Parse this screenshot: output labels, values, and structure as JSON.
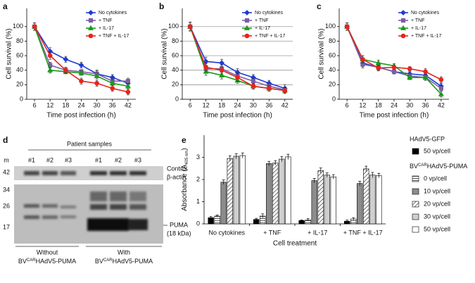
{
  "chart_data": [
    {
      "type": "line",
      "label": "a",
      "x_label": "Time post infection (h)",
      "y_label": "Cell survival (%)",
      "x": [
        6,
        12,
        18,
        24,
        30,
        36,
        42
      ],
      "xlim": [
        3,
        45
      ],
      "xticks": [
        6,
        12,
        18,
        24,
        30,
        36,
        42
      ],
      "ylim": [
        0,
        125
      ],
      "yticks": [
        0,
        20,
        40,
        60,
        80,
        100
      ],
      "grid": false,
      "legend": "upper right",
      "series": [
        {
          "name": "No cytokines",
          "color": "#1f3bd6",
          "marker": "diamond",
          "values": [
            100,
            66,
            55,
            47,
            35,
            30,
            22
          ],
          "errors": [
            5,
            5,
            4,
            4,
            5,
            4,
            5
          ]
        },
        {
          "name": "+ TNF",
          "color": "#7b5ea7",
          "marker": "square",
          "values": [
            100,
            47,
            40,
            38,
            35,
            25,
            25
          ],
          "errors": [
            5,
            4,
            3,
            3,
            4,
            4,
            4
          ]
        },
        {
          "name": "+ IL-17",
          "color": "#1a9a1a",
          "marker": "triangle",
          "values": [
            100,
            40,
            38,
            36,
            32,
            22,
            18
          ],
          "errors": [
            5,
            4,
            3,
            3,
            4,
            5,
            4
          ]
        },
        {
          "name": "+ TNF + IL-17",
          "color": "#e8231c",
          "marker": "circle",
          "values": [
            100,
            60,
            40,
            25,
            22,
            15,
            10
          ],
          "errors": [
            5,
            5,
            4,
            4,
            4,
            4,
            4
          ]
        }
      ]
    },
    {
      "type": "line",
      "label": "b",
      "x_label": "Time post infection (h)",
      "y_label": "Cell survival (%)",
      "x": [
        6,
        12,
        18,
        24,
        30,
        36,
        42
      ],
      "xlim": [
        3,
        45
      ],
      "xticks": [
        6,
        12,
        18,
        24,
        30,
        36,
        42
      ],
      "ylim": [
        0,
        125
      ],
      "yticks": [
        0,
        20,
        40,
        60,
        80,
        100
      ],
      "grid": true,
      "legend": "upper right",
      "series": [
        {
          "name": "No cytokines",
          "color": "#1f3bd6",
          "marker": "diamond",
          "values": [
            100,
            52,
            50,
            37,
            30,
            22,
            15
          ],
          "errors": [
            6,
            6,
            5,
            5,
            4,
            4,
            5
          ]
        },
        {
          "name": "+ TNF",
          "color": "#7b5ea7",
          "marker": "square",
          "values": [
            100,
            42,
            42,
            32,
            25,
            18,
            13
          ],
          "errors": [
            6,
            5,
            5,
            4,
            4,
            4,
            4
          ]
        },
        {
          "name": "+ IL-17",
          "color": "#1a9a1a",
          "marker": "triangle",
          "values": [
            100,
            38,
            33,
            26,
            18,
            15,
            12
          ],
          "errors": [
            6,
            5,
            5,
            4,
            4,
            4,
            4
          ]
        },
        {
          "name": "+ TNF + IL-17",
          "color": "#e8231c",
          "marker": "circle",
          "values": [
            100,
            44,
            40,
            30,
            18,
            15,
            12
          ],
          "errors": [
            6,
            5,
            5,
            5,
            4,
            4,
            4
          ]
        }
      ]
    },
    {
      "type": "line",
      "label": "c",
      "x_label": "Time post infection (h)",
      "y_label": "Cell survival (%)",
      "x": [
        6,
        12,
        18,
        24,
        30,
        36,
        42
      ],
      "xlim": [
        3,
        45
      ],
      "xticks": [
        6,
        12,
        18,
        24,
        30,
        36,
        42
      ],
      "ylim": [
        0,
        125
      ],
      "yticks": [
        0,
        20,
        40,
        60,
        80,
        100
      ],
      "grid": false,
      "legend": "upper right",
      "series": [
        {
          "name": "No cytokines",
          "color": "#1f3bd6",
          "marker": "diamond",
          "values": [
            100,
            50,
            44,
            38,
            35,
            33,
            18
          ],
          "errors": [
            5,
            5,
            4,
            3,
            3,
            4,
            4
          ]
        },
        {
          "name": "+ TNF",
          "color": "#7b5ea7",
          "marker": "square",
          "values": [
            100,
            48,
            44,
            38,
            32,
            30,
            15
          ],
          "errors": [
            5,
            5,
            4,
            3,
            3,
            4,
            4
          ]
        },
        {
          "name": "+ IL-17",
          "color": "#1a9a1a",
          "marker": "triangle",
          "values": [
            100,
            55,
            50,
            46,
            30,
            30,
            7
          ],
          "errors": [
            5,
            5,
            4,
            3,
            3,
            4,
            4
          ]
        },
        {
          "name": "+ TNF + IL-17",
          "color": "#e8231c",
          "marker": "circle",
          "values": [
            100,
            55,
            43,
            44,
            42,
            38,
            27
          ],
          "errors": [
            5,
            5,
            4,
            3,
            3,
            4,
            4
          ]
        }
      ]
    },
    {
      "type": "bar",
      "label": "e",
      "x_label": "Cell treatment",
      "y_label": {
        "main": "Absorbance (A",
        "sub": "405 nm",
        "end": ")"
      },
      "categories": [
        "No cytokines",
        "+ TNF",
        "+ IL-17",
        "+ TNF + IL-17"
      ],
      "ylim": [
        0,
        4
      ],
      "yticks": [
        0,
        1,
        2,
        3
      ],
      "legend_titles": [
        "HAdV5-GFP",
        {
          "base": "BV",
          "sup": "CAR",
          "rest": "HAdV5-PUMA"
        }
      ],
      "series": [
        {
          "name": "50 vp/cell",
          "group": 0,
          "color": "#000000",
          "values": [
            0.28,
            0.2,
            0.15,
            0.12
          ],
          "errors": [
            0.05,
            0.05,
            0.03,
            0.05
          ]
        },
        {
          "name": "0 vp/cell",
          "group": 1,
          "color": "#ffffff",
          "hatch": "horizontal",
          "values": [
            0.35,
            0.35,
            0.18,
            0.22
          ],
          "errors": [
            0.05,
            0.1,
            0.06,
            0.06
          ]
        },
        {
          "name": "10 vp/cell",
          "group": 1,
          "color": "#8c8c8c",
          "values": [
            1.88,
            2.72,
            1.95,
            1.82
          ],
          "errors": [
            0.1,
            0.1,
            0.1,
            0.1
          ]
        },
        {
          "name": "20 vp/cell",
          "group": 1,
          "color": "#ffffff",
          "hatch": "diagonal",
          "values": [
            2.95,
            2.75,
            2.4,
            2.48
          ],
          "errors": [
            0.12,
            0.1,
            0.12,
            0.12
          ]
        },
        {
          "name": "30 vp/cell",
          "group": 1,
          "color": "#cfcfcf",
          "values": [
            3.05,
            2.92,
            2.2,
            2.2
          ],
          "errors": [
            0.12,
            0.12,
            0.1,
            0.12
          ]
        },
        {
          "name": "50 vp/cell",
          "group": 1,
          "color": "#ffffff",
          "values": [
            3.08,
            3.02,
            2.12,
            2.18
          ],
          "errors": [
            0.12,
            0.12,
            0.1,
            0.1
          ]
        }
      ]
    }
  ],
  "blot": {
    "label": "d",
    "title": "Patient samples",
    "lanes": [
      "#1",
      "#2",
      "#3",
      "#1",
      "#2",
      "#3"
    ],
    "marker_header": "m",
    "markers": [
      "42",
      "34",
      "26",
      "17"
    ],
    "control_label": [
      "Control",
      "β-actin"
    ],
    "puma_label": [
      "PUMA",
      "(18 kDa)"
    ],
    "groups": [
      {
        "line1": "Without",
        "base": "BV",
        "sup": "CAR",
        "rest": "HAdV5-PUMA"
      },
      {
        "line1": "With",
        "base": "BV",
        "sup": "CAR",
        "rest": "HAdV5-PUMA"
      }
    ]
  }
}
